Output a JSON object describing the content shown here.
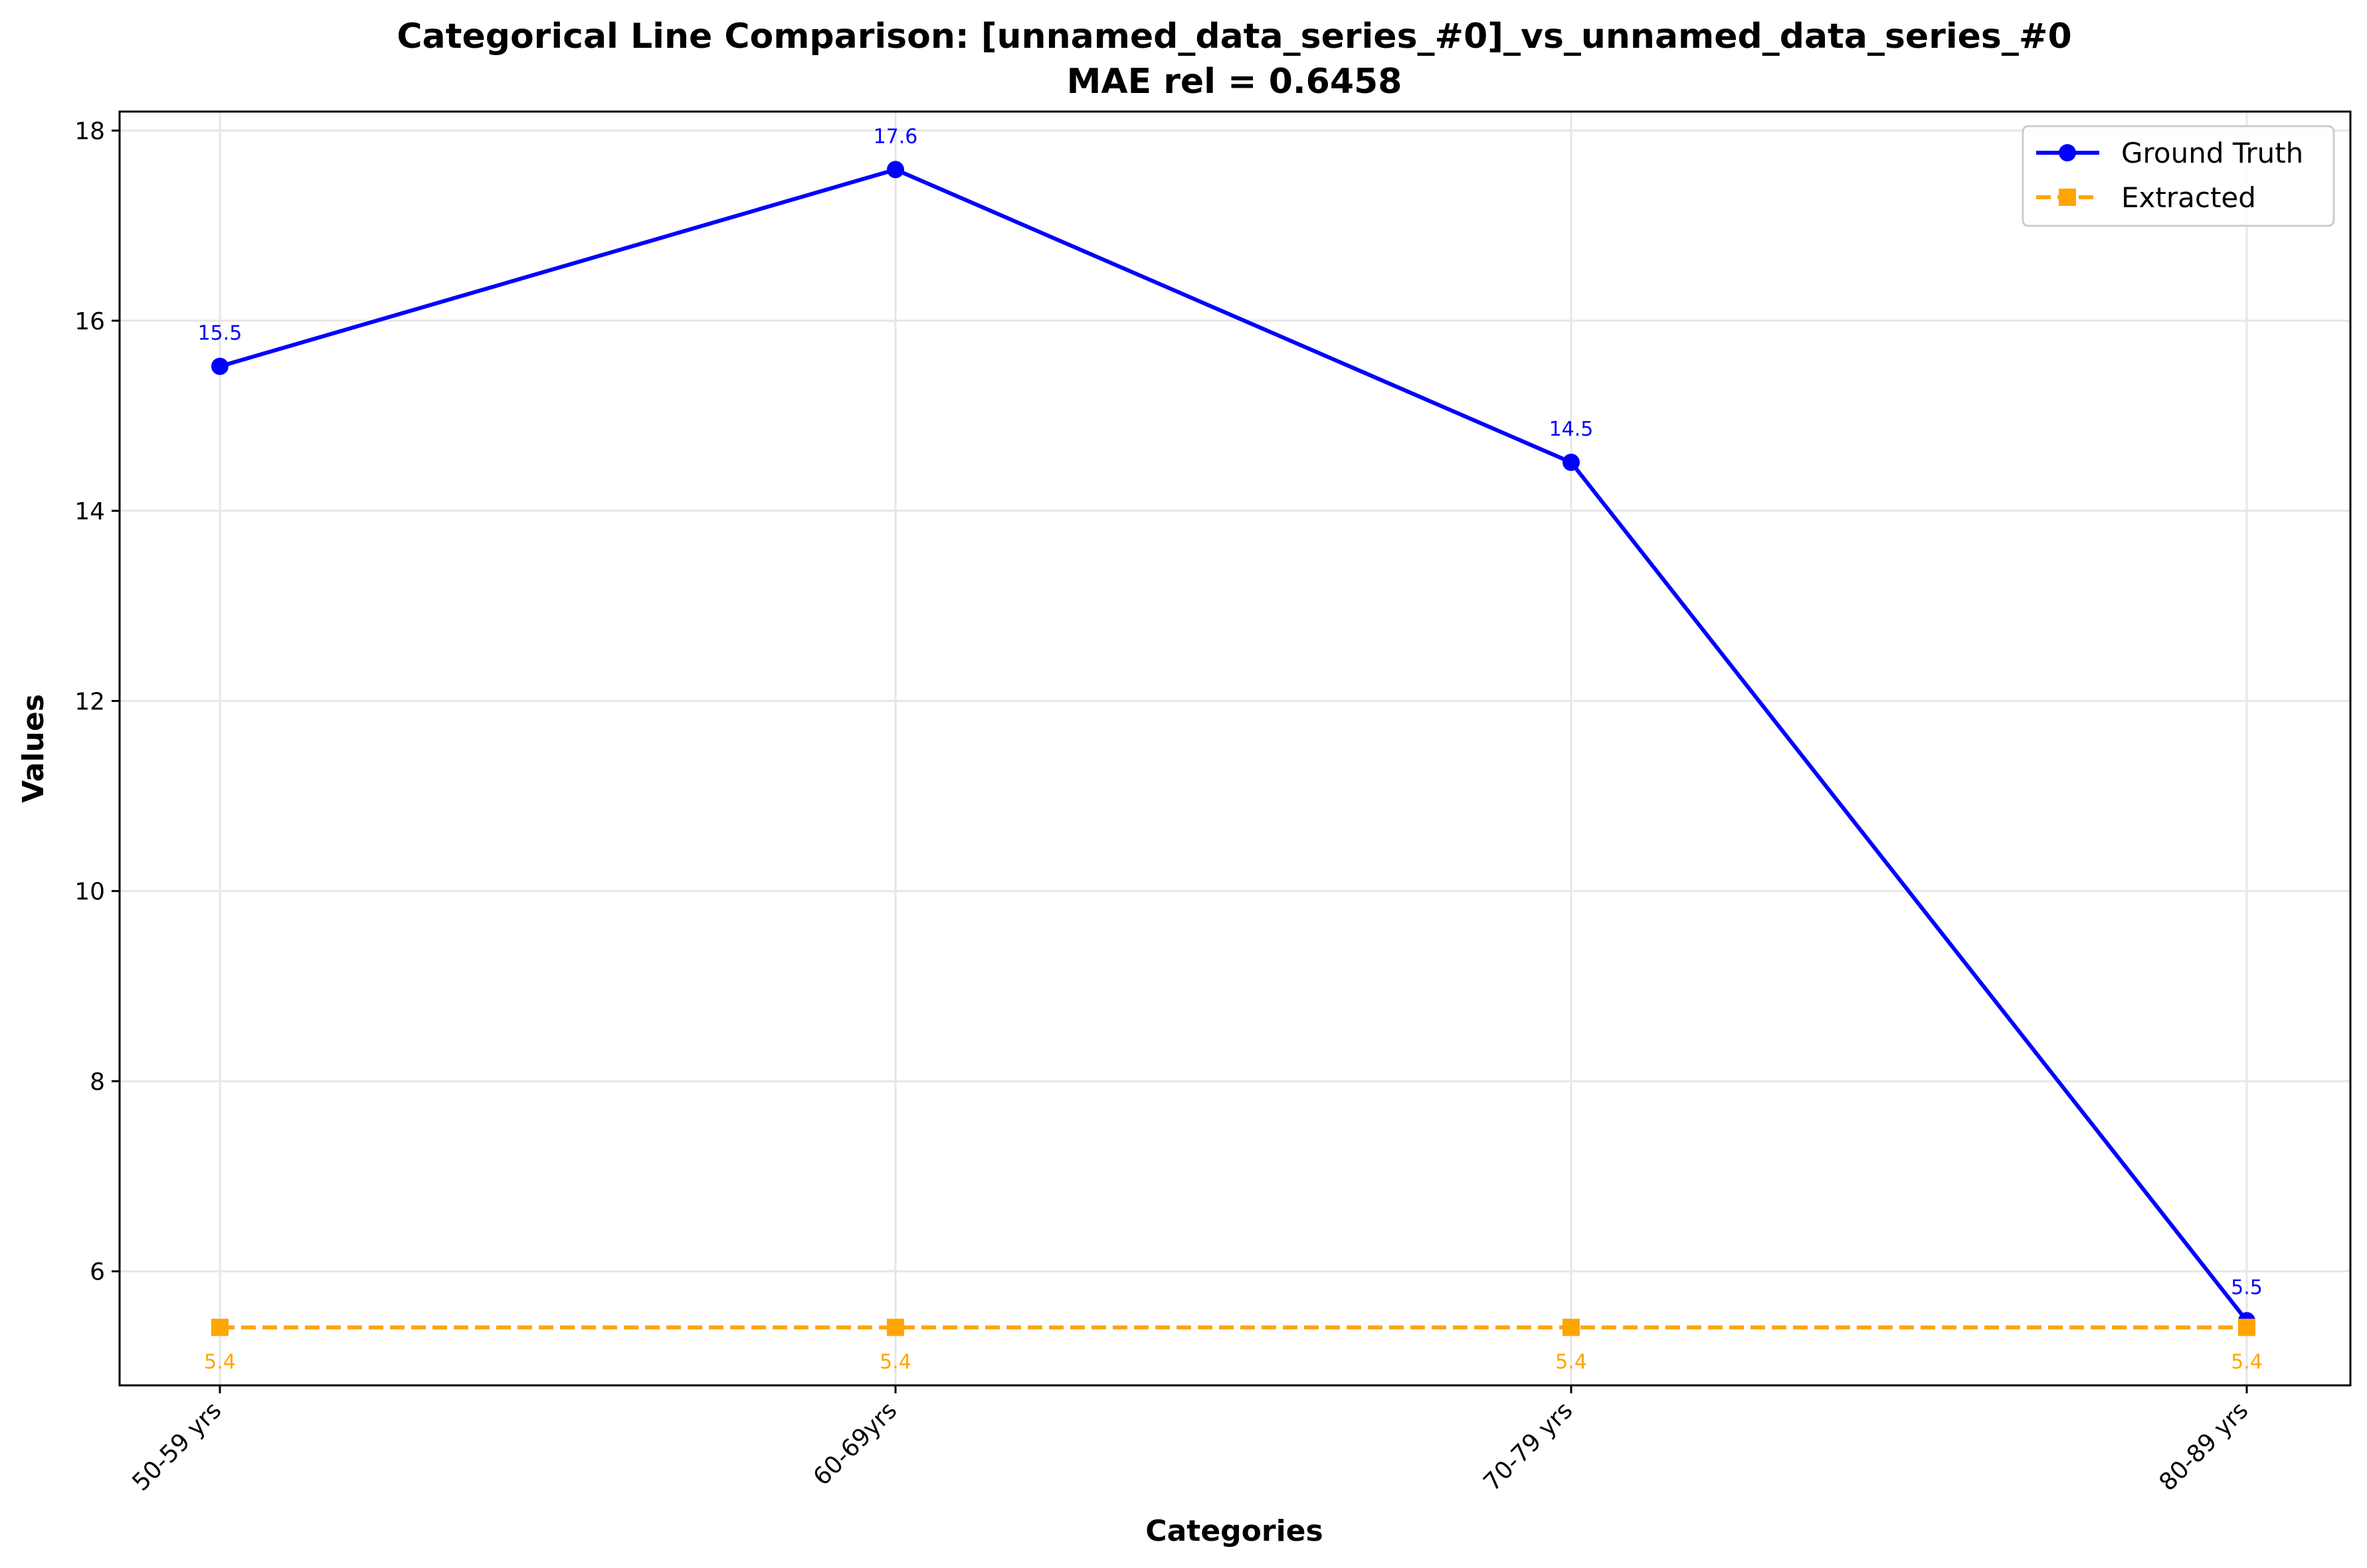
{
  "chart_data": {
    "type": "line",
    "title": "Categorical Line Comparison: [unnamed_data_series_#0]_vs_unnamed_data_series_#0",
    "subtitle": "MAE rel = 0.6458",
    "xlabel": "Categories",
    "ylabel": "Values",
    "categories": [
      "50-59 yrs",
      "60-69yrs",
      "70-79 yrs",
      "80-89 yrs"
    ],
    "ylim": [
      4.8,
      18.2
    ],
    "yticks": [
      6,
      8,
      10,
      12,
      14,
      16,
      18
    ],
    "grid": true,
    "legend_position": "top-right",
    "series": [
      {
        "name": "Ground Truth",
        "values": [
          15.52,
          17.59,
          14.51,
          5.48
        ],
        "labels": [
          "15.5",
          "17.6",
          "14.5",
          "5.5"
        ],
        "color": "#0000ff",
        "line_style": "solid",
        "marker": "circle"
      },
      {
        "name": "Extracted",
        "values": [
          5.41,
          5.41,
          5.41,
          5.41
        ],
        "labels": [
          "5.4",
          "5.4",
          "5.4",
          "5.4"
        ],
        "color": "#ffa500",
        "line_style": "dashed",
        "marker": "square"
      }
    ]
  }
}
